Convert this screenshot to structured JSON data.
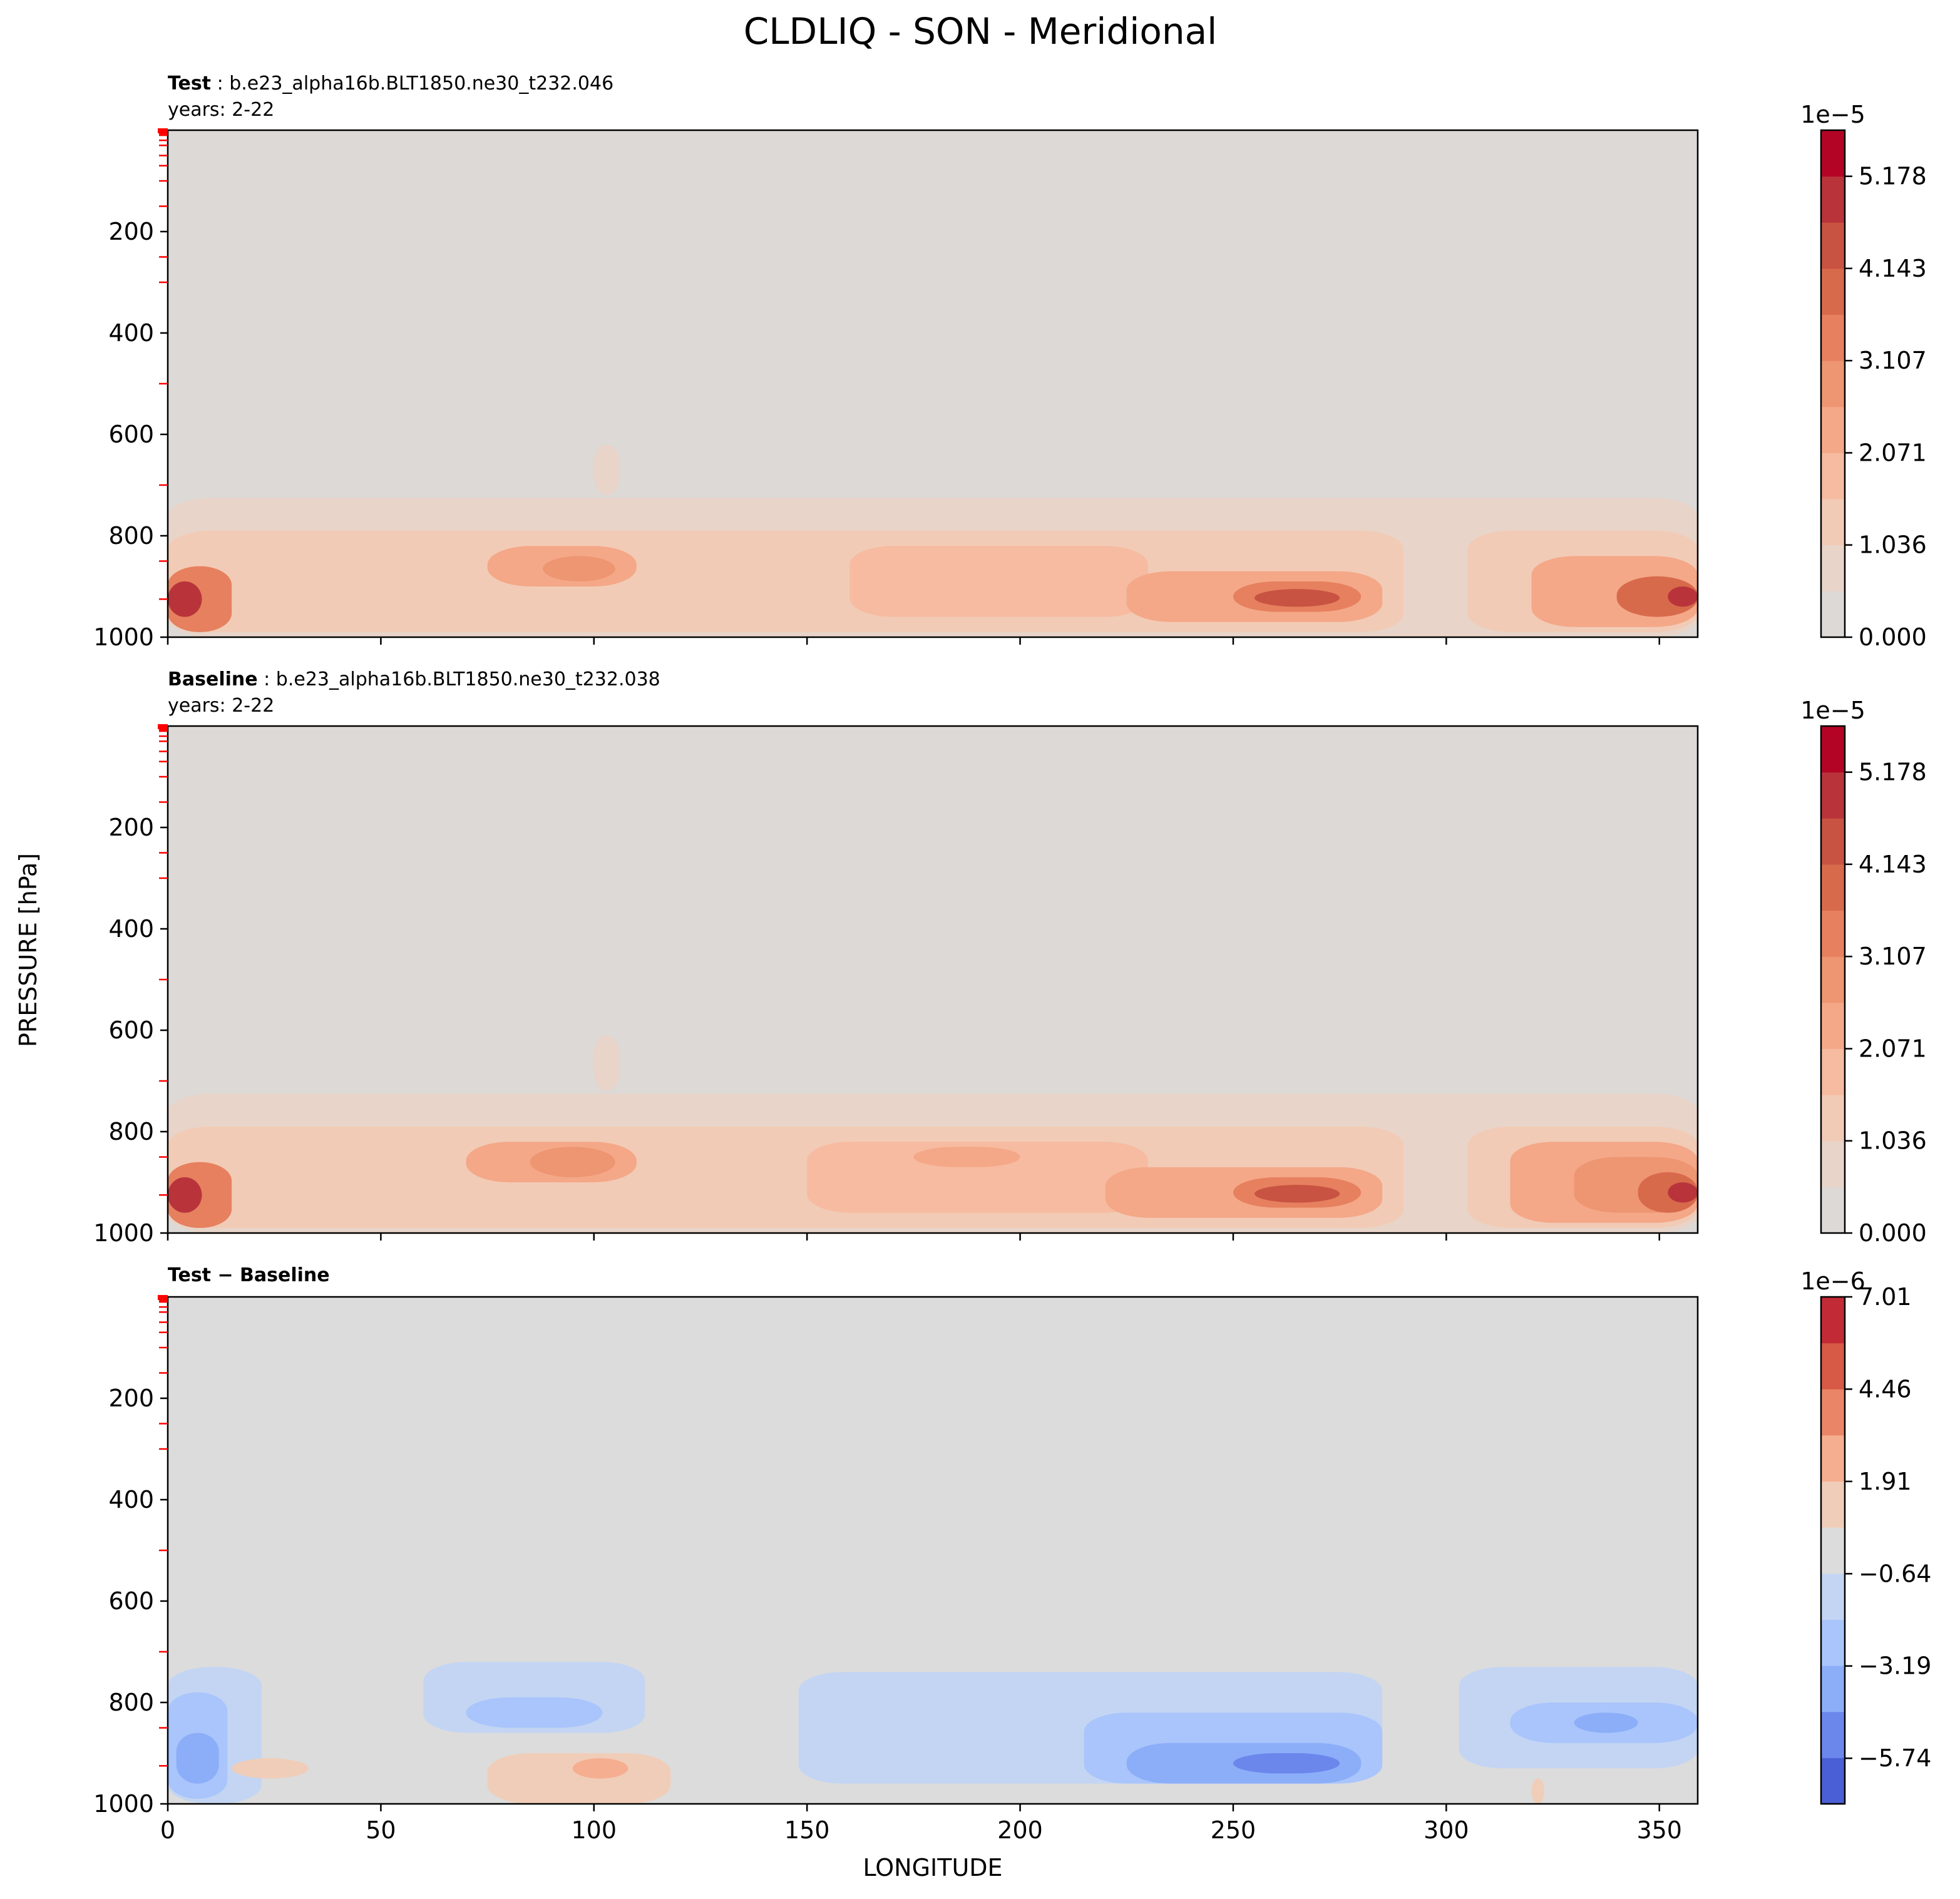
{
  "figure": {
    "title": "CLDLIQ - SON - Meridional",
    "ylabel": "PRESSURE [hPa]",
    "xlabel": "LONGITUDE"
  },
  "chart_data": [
    {
      "type": "heatmap",
      "panel": "test",
      "label_bold": "Test",
      "label_sep": ":",
      "case_name": "b.e23_alpha16b.BLT1850.ne30_t232.046",
      "years": "years: 2-22",
      "x_ticks": [],
      "xlim": [
        0,
        359
      ],
      "y_ticks": [
        "200",
        "400",
        "600",
        "800",
        "1000"
      ],
      "y_tick_values": [
        200,
        400,
        600,
        800,
        1000
      ],
      "ylim": [
        1000,
        0
      ],
      "cmap": [
        "#dcdcdc",
        "#e8d4c8",
        "#f2cbb6",
        "#f6bba0",
        "#f4a888",
        "#ee9572",
        "#e6805e",
        "#d86a4c",
        "#c85342",
        "#b8343a",
        "#b40426"
      ],
      "colorbar": {
        "multiplier": "1e−5",
        "tick_labels": [
          "5.178",
          "4.143",
          "3.107",
          "2.071",
          "1.036",
          "0.000"
        ],
        "tick_values": [
          5.178,
          4.143,
          3.107,
          2.071,
          1.036,
          0.0
        ],
        "range": [
          0.0,
          5.696
        ],
        "n_levels": 11,
        "colors": [
          "#dcd9d6",
          "#e8d4c8",
          "#f2cbb6",
          "#f6bba0",
          "#f4a888",
          "#ee9572",
          "#e6805e",
          "#d86a4c",
          "#c85342",
          "#b8343a",
          "#b40426"
        ]
      },
      "features": [
        {
          "lon": [
            0,
            359
          ],
          "p": [
            725,
            1000
          ],
          "level": 1
        },
        {
          "lon": [
            0,
            290
          ],
          "p": [
            790,
            990
          ],
          "level": 2
        },
        {
          "lon": [
            305,
            359
          ],
          "p": [
            790,
            990
          ],
          "level": 2
        },
        {
          "lon": [
            100,
            106
          ],
          "p": [
            620,
            720
          ],
          "level": 1
        },
        {
          "lon": [
            0,
            15
          ],
          "p": [
            860,
            990
          ],
          "level": 6
        },
        {
          "lon": [
            0,
            8
          ],
          "p": [
            890,
            960
          ],
          "level": 9
        },
        {
          "lon": [
            75,
            110
          ],
          "p": [
            820,
            900
          ],
          "level": 4
        },
        {
          "lon": [
            88,
            105
          ],
          "p": [
            840,
            890
          ],
          "level": 5
        },
        {
          "lon": [
            160,
            230
          ],
          "p": [
            820,
            960
          ],
          "level": 3
        },
        {
          "lon": [
            225,
            285
          ],
          "p": [
            870,
            970
          ],
          "level": 4
        },
        {
          "lon": [
            250,
            280
          ],
          "p": [
            890,
            950
          ],
          "level": 6
        },
        {
          "lon": [
            255,
            275
          ],
          "p": [
            905,
            940
          ],
          "level": 8
        },
        {
          "lon": [
            320,
            359
          ],
          "p": [
            840,
            980
          ],
          "level": 4
        },
        {
          "lon": [
            340,
            359
          ],
          "p": [
            880,
            960
          ],
          "level": 7
        },
        {
          "lon": [
            352,
            359
          ],
          "p": [
            900,
            940
          ],
          "level": 9
        }
      ]
    },
    {
      "type": "heatmap",
      "panel": "baseline",
      "label_bold": "Baseline",
      "label_sep": ":",
      "case_name": "b.e23_alpha16b.BLT1850.ne30_t232.038",
      "years": "years: 2-22",
      "x_ticks": [],
      "xlim": [
        0,
        359
      ],
      "y_ticks": [
        "200",
        "400",
        "600",
        "800",
        "1000"
      ],
      "y_tick_values": [
        200,
        400,
        600,
        800,
        1000
      ],
      "ylim": [
        1000,
        0
      ],
      "cmap": [
        "#dcdcdc",
        "#e8d4c8",
        "#f2cbb6",
        "#f6bba0",
        "#f4a888",
        "#ee9572",
        "#e6805e",
        "#d86a4c",
        "#c85342",
        "#b8343a",
        "#b40426"
      ],
      "colorbar": {
        "multiplier": "1e−5",
        "tick_labels": [
          "5.178",
          "4.143",
          "3.107",
          "2.071",
          "1.036",
          "0.000"
        ],
        "tick_values": [
          5.178,
          4.143,
          3.107,
          2.071,
          1.036,
          0.0
        ],
        "range": [
          0.0,
          5.696
        ],
        "n_levels": 11,
        "colors": [
          "#dcd9d6",
          "#e8d4c8",
          "#f2cbb6",
          "#f6bba0",
          "#f4a888",
          "#ee9572",
          "#e6805e",
          "#d86a4c",
          "#c85342",
          "#b8343a",
          "#b40426"
        ]
      },
      "features": [
        {
          "lon": [
            0,
            359
          ],
          "p": [
            725,
            1000
          ],
          "level": 1
        },
        {
          "lon": [
            0,
            290
          ],
          "p": [
            790,
            990
          ],
          "level": 2
        },
        {
          "lon": [
            305,
            359
          ],
          "p": [
            790,
            990
          ],
          "level": 2
        },
        {
          "lon": [
            100,
            106
          ],
          "p": [
            610,
            720
          ],
          "level": 1
        },
        {
          "lon": [
            0,
            15
          ],
          "p": [
            860,
            990
          ],
          "level": 6
        },
        {
          "lon": [
            0,
            8
          ],
          "p": [
            890,
            960
          ],
          "level": 9
        },
        {
          "lon": [
            70,
            110
          ],
          "p": [
            820,
            900
          ],
          "level": 4
        },
        {
          "lon": [
            85,
            105
          ],
          "p": [
            830,
            890
          ],
          "level": 5
        },
        {
          "lon": [
            150,
            230
          ],
          "p": [
            820,
            960
          ],
          "level": 3
        },
        {
          "lon": [
            175,
            200
          ],
          "p": [
            830,
            870
          ],
          "level": 4
        },
        {
          "lon": [
            220,
            285
          ],
          "p": [
            870,
            970
          ],
          "level": 4
        },
        {
          "lon": [
            250,
            280
          ],
          "p": [
            890,
            950
          ],
          "level": 6
        },
        {
          "lon": [
            255,
            275
          ],
          "p": [
            905,
            940
          ],
          "level": 8
        },
        {
          "lon": [
            315,
            359
          ],
          "p": [
            820,
            980
          ],
          "level": 4
        },
        {
          "lon": [
            330,
            359
          ],
          "p": [
            850,
            960
          ],
          "level": 5
        },
        {
          "lon": [
            345,
            359
          ],
          "p": [
            880,
            960
          ],
          "level": 7
        },
        {
          "lon": [
            352,
            359
          ],
          "p": [
            900,
            940
          ],
          "level": 9
        }
      ]
    },
    {
      "type": "heatmap",
      "panel": "difference",
      "label_bold": "Test − Baseline",
      "label_sep": "",
      "case_name": "",
      "years": "",
      "x_ticks": [
        "0",
        "50",
        "100",
        "150",
        "200",
        "250",
        "300",
        "350"
      ],
      "x_tick_values": [
        0,
        50,
        100,
        150,
        200,
        250,
        300,
        350
      ],
      "xlim": [
        0,
        359
      ],
      "y_ticks": [
        "200",
        "400",
        "600",
        "800",
        "1000"
      ],
      "y_tick_values": [
        200,
        400,
        600,
        800,
        1000
      ],
      "ylim": [
        1000,
        0
      ],
      "colorbar": {
        "multiplier": "1e−6",
        "tick_labels": [
          "7.01",
          "4.46",
          "1.91",
          "−0.64",
          "−3.19",
          "−5.74"
        ],
        "tick_values": [
          7.01,
          4.46,
          1.91,
          -0.64,
          -3.19,
          -5.74
        ],
        "range": [
          -7.0,
          7.01
        ],
        "n_levels": 11,
        "colors": [
          "#4a5fd5",
          "#6b87ec",
          "#8caef8",
          "#a9c5fb",
          "#c4d5f3",
          "#dcdcdc",
          "#f0cdb8",
          "#f5ae90",
          "#ea8567",
          "#d65a46",
          "#c22b35"
        ]
      },
      "features": [
        {
          "lon": [
            0,
            22
          ],
          "p": [
            730,
            1000
          ],
          "level": 4
        },
        {
          "lon": [
            0,
            14
          ],
          "p": [
            780,
            990
          ],
          "level": 3
        },
        {
          "lon": [
            2,
            12
          ],
          "p": [
            860,
            960
          ],
          "level": 2
        },
        {
          "lon": [
            60,
            112
          ],
          "p": [
            720,
            860
          ],
          "level": 4
        },
        {
          "lon": [
            70,
            102
          ],
          "p": [
            790,
            850
          ],
          "level": 3
        },
        {
          "lon": [
            75,
            118
          ],
          "p": [
            900,
            1000
          ],
          "level": 6
        },
        {
          "lon": [
            95,
            108
          ],
          "p": [
            910,
            950
          ],
          "level": 7
        },
        {
          "lon": [
            15,
            33
          ],
          "p": [
            910,
            950
          ],
          "level": 6
        },
        {
          "lon": [
            148,
            285
          ],
          "p": [
            740,
            960
          ],
          "level": 4
        },
        {
          "lon": [
            215,
            285
          ],
          "p": [
            820,
            960
          ],
          "level": 3
        },
        {
          "lon": [
            225,
            280
          ],
          "p": [
            880,
            960
          ],
          "level": 2
        },
        {
          "lon": [
            250,
            275
          ],
          "p": [
            900,
            940
          ],
          "level": 1
        },
        {
          "lon": [
            303,
            359
          ],
          "p": [
            730,
            930
          ],
          "level": 4
        },
        {
          "lon": [
            315,
            359
          ],
          "p": [
            800,
            880
          ],
          "level": 3
        },
        {
          "lon": [
            330,
            345
          ],
          "p": [
            820,
            860
          ],
          "level": 2
        },
        {
          "lon": [
            320,
            323
          ],
          "p": [
            950,
            1000
          ],
          "level": 6
        }
      ]
    }
  ]
}
